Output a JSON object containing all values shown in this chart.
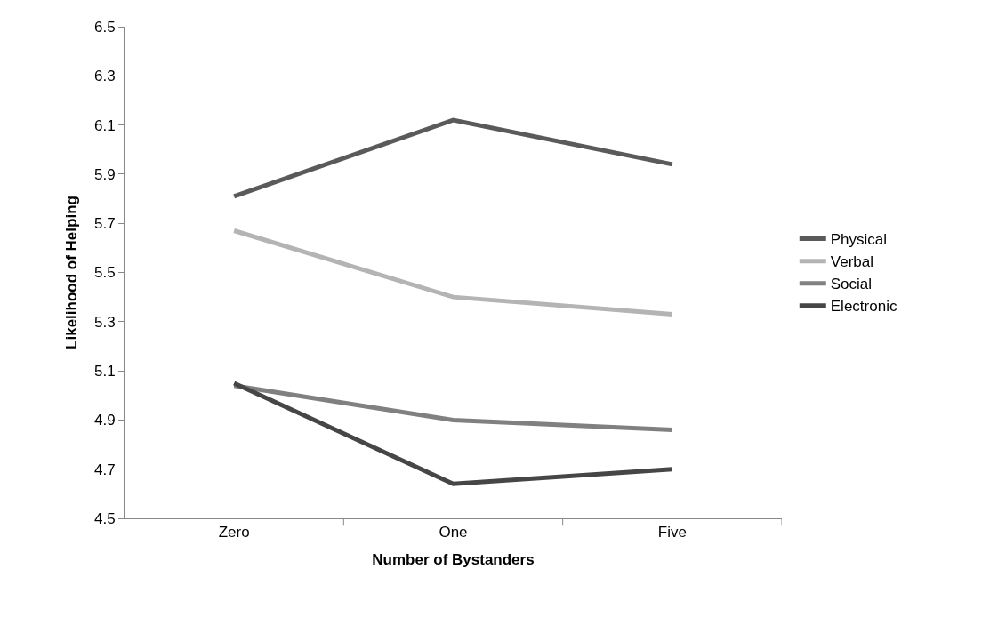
{
  "chart_data": {
    "type": "line",
    "xlabel": "Number of Bystanders",
    "ylabel": "Likelihood of Helping",
    "categories": [
      "Zero",
      "One",
      "Five"
    ],
    "series": [
      {
        "name": "Physical",
        "color": "#5a5a5a",
        "values": [
          5.81,
          6.12,
          5.94
        ]
      },
      {
        "name": "Verbal",
        "color": "#b4b4b4",
        "values": [
          5.67,
          5.4,
          5.33
        ]
      },
      {
        "name": "Social",
        "color": "#808080",
        "values": [
          5.04,
          4.9,
          4.86
        ]
      },
      {
        "name": "Electronic",
        "color": "#464646",
        "values": [
          5.05,
          4.64,
          4.7
        ]
      }
    ],
    "ylim": [
      4.5,
      6.5
    ],
    "yticks": [
      4.5,
      4.7,
      4.9,
      5.1,
      5.3,
      5.5,
      5.7,
      5.9,
      6.1,
      6.3,
      6.5
    ],
    "legend": "right",
    "marker": "none",
    "line_style": "solid"
  }
}
